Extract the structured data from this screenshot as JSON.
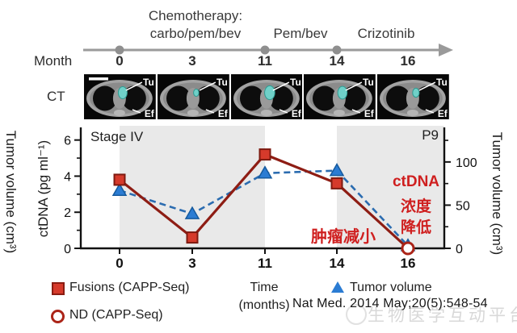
{
  "timeline": {
    "month_label": "Month",
    "months": [
      "0",
      "3",
      "11",
      "14",
      "16"
    ],
    "phases": {
      "chemo_line1": "Chemotherapy:",
      "chemo_line2": "carbo/pem/bev",
      "pembev": "Pem/bev",
      "crizotinib": "Crizotinib"
    }
  },
  "ct": {
    "row_label": "CT",
    "tumor_label": "Tu",
    "effusion_label": "Ef"
  },
  "chart_data": {
    "type": "line",
    "stage_label": "Stage IV",
    "patient_label": "P9",
    "categories": [
      "0",
      "3",
      "11",
      "14",
      "16"
    ],
    "xlabel_line1": "Time",
    "xlabel_line2": "(months)",
    "left_axis": {
      "label": "ctDNA (pg ml⁻¹)",
      "ticks": [
        "0",
        "2",
        "4",
        "6"
      ],
      "tick_values": [
        0,
        2,
        4,
        6
      ],
      "minor_ticks": [
        1,
        3,
        5
      ],
      "range": [
        0,
        6.7
      ]
    },
    "right_axis": {
      "label": "Tumor volume (cm³)",
      "ticks": [
        "0",
        "50",
        "100"
      ],
      "tick_values": [
        0,
        50,
        100
      ],
      "minor_ticks": [
        25,
        75,
        125
      ],
      "range": [
        0,
        140
      ]
    },
    "left_outer_label": "Tumor volume (cm³)",
    "series": [
      {
        "name": "Tumor volume",
        "axis": "right",
        "marker": "triangle",
        "style": "dashed",
        "color": "#2b6cb0",
        "marker_color": "#2b7cd3",
        "values": [
          67,
          40,
          87,
          90,
          3
        ]
      },
      {
        "name": "Fusions (CAPP-Seq)",
        "axis": "left",
        "marker": "square",
        "style": "solid",
        "color": "#8e1d14",
        "marker_color": "#d63a2b",
        "values": [
          3.8,
          0.6,
          5.2,
          3.6,
          0
        ],
        "last_point_nd": true,
        "nd_name": "ND (CAPP-Seq)"
      }
    ],
    "shaded_bands": [
      {
        "from": 0,
        "to": 2
      },
      {
        "from": 3,
        "to": "end"
      }
    ],
    "band_color": "#e9e9e9"
  },
  "annotations": {
    "tumor_shrink": "肿瘤减小",
    "ctdna_line1": "ctDNA",
    "ctdna_line2": "浓度",
    "ctdna_line3": "降低"
  },
  "legend": {
    "fusions": "Fusions (CAPP-Seq)",
    "nd": "ND (CAPP-Seq)",
    "tumor": "Tumor volume"
  },
  "citation": "Nat Med. 2014 May;20(5):548-54",
  "watermark": "生物医学互动平台"
}
